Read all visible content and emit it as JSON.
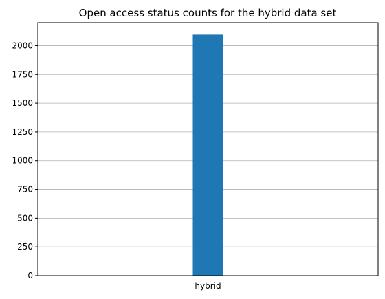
{
  "chart_data": {
    "type": "bar",
    "title": "Open access status counts for the hybrid data set",
    "xlabel": "",
    "ylabel": "",
    "categories": [
      "hybrid"
    ],
    "values": [
      2096
    ],
    "ylim": [
      0,
      2200
    ],
    "yticks": [
      0,
      250,
      500,
      750,
      1000,
      1250,
      1500,
      1750,
      2000
    ],
    "ytick_labels": [
      "0",
      "250",
      "500",
      "750",
      "1000",
      "1250",
      "1500",
      "1750",
      "2000"
    ],
    "grid": true,
    "legend": "none",
    "colors": {
      "bar": "#1f77b4",
      "grid": "#b0b0b0",
      "axis": "#000000"
    }
  }
}
